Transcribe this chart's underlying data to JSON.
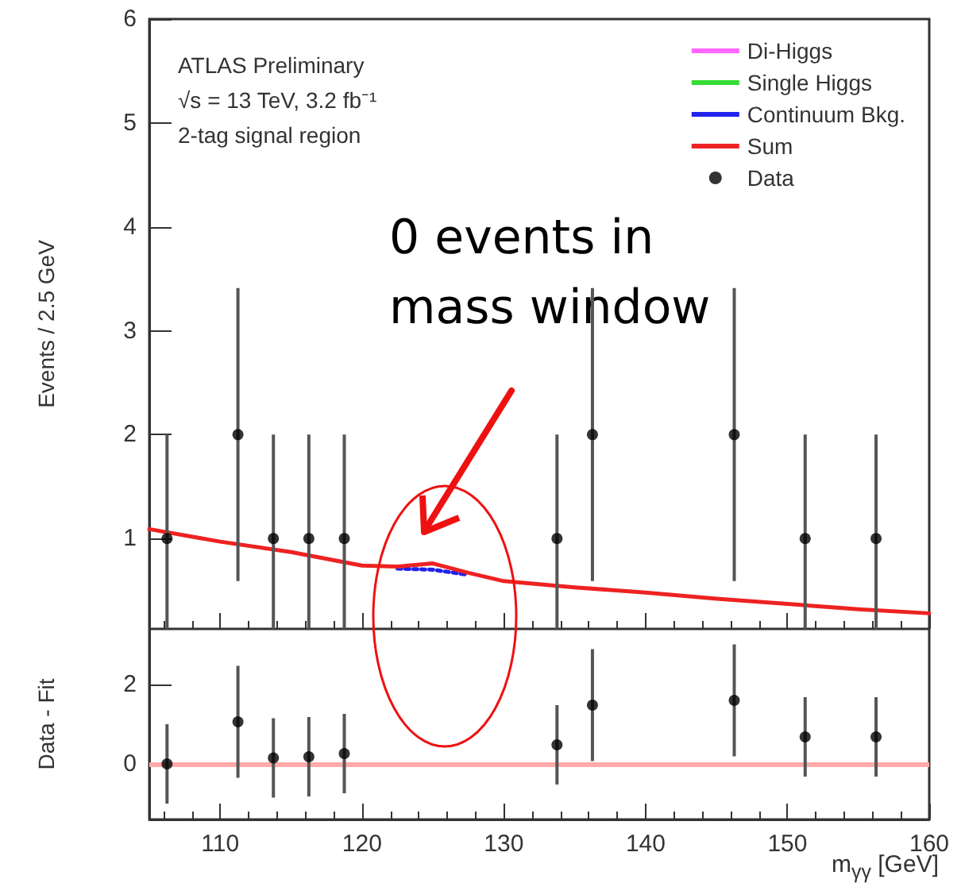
{
  "chart_data": [
    {
      "type": "line",
      "ylabel": "Events / 2.5 GeV",
      "xlim": [
        105,
        160
      ],
      "xticks": [
        110,
        120,
        130,
        140,
        150,
        160
      ],
      "ylim": [
        0.13,
        6
      ],
      "yticks": [
        1,
        2,
        3,
        4,
        5,
        6
      ],
      "legend": "top right",
      "tick_labels": "y",
      "annotations": [
        "ATLAS Preliminary",
        "√s = 13 TeV, 3.2 fb⁻¹",
        "2-tag signal region",
        "0 events in mass window"
      ],
      "series": [
        {
          "name": "Di-Higgs",
          "color": "#ff66ff",
          "line_style": "solid"
        },
        {
          "name": "Single Higgs",
          "color": "#33dd33",
          "line_style": "dotted"
        },
        {
          "name": "Continuum Bkg.",
          "color": "#2222ee",
          "line_style": "dotted",
          "x": [
            122.5,
            125,
            127.5
          ],
          "values": [
            0.71,
            0.7,
            0.65
          ]
        },
        {
          "name": "Sum",
          "color": "#ee2222",
          "line_style": "solid",
          "x": [
            105,
            110,
            115,
            120,
            122.5,
            125,
            127.5,
            130,
            135,
            140,
            145,
            150,
            155,
            160
          ],
          "values": [
            1.09,
            0.97,
            0.87,
            0.74,
            0.73,
            0.76,
            0.67,
            0.59,
            0.53,
            0.48,
            0.42,
            0.37,
            0.32,
            0.28
          ]
        },
        {
          "name": "Data",
          "type": "scatter",
          "color": "#000000",
          "marker": "circle",
          "x": [
            106.25,
            111.25,
            113.75,
            116.25,
            118.75,
            133.75,
            136.25,
            146.25,
            151.25,
            156.25
          ],
          "values": [
            1,
            2,
            1,
            1,
            1,
            1,
            2,
            2,
            1,
            1
          ],
          "errors": [
            1,
            1.41,
            1,
            1,
            1,
            1,
            1.41,
            1.41,
            1,
            1
          ]
        }
      ]
    },
    {
      "type": "scatter",
      "xlabel": "m$_{γγ}$ [GeV]",
      "ylabel": "Data - Fit",
      "xlim": [
        105,
        160
      ],
      "xticks": [
        110,
        120,
        130,
        140,
        150,
        160
      ],
      "ylim": [
        -1.4,
        3.4
      ],
      "yticks": [
        0,
        2
      ],
      "ref_lines": [
        {
          "axis": "y",
          "value": 0,
          "color": "#ffaaaa"
        }
      ],
      "series": [
        {
          "color": "#000000",
          "marker": "circle",
          "x": [
            106.25,
            111.25,
            113.75,
            116.25,
            118.75,
            133.75,
            136.25,
            146.25,
            151.25,
            156.25
          ],
          "values": [
            0,
            1.06,
            0.15,
            0.18,
            0.26,
            0.48,
            1.48,
            1.6,
            0.68,
            0.68
          ],
          "errors": [
            1,
            1.41,
            1,
            1,
            1,
            1,
            1.41,
            1.41,
            1,
            1
          ]
        }
      ]
    }
  ]
}
